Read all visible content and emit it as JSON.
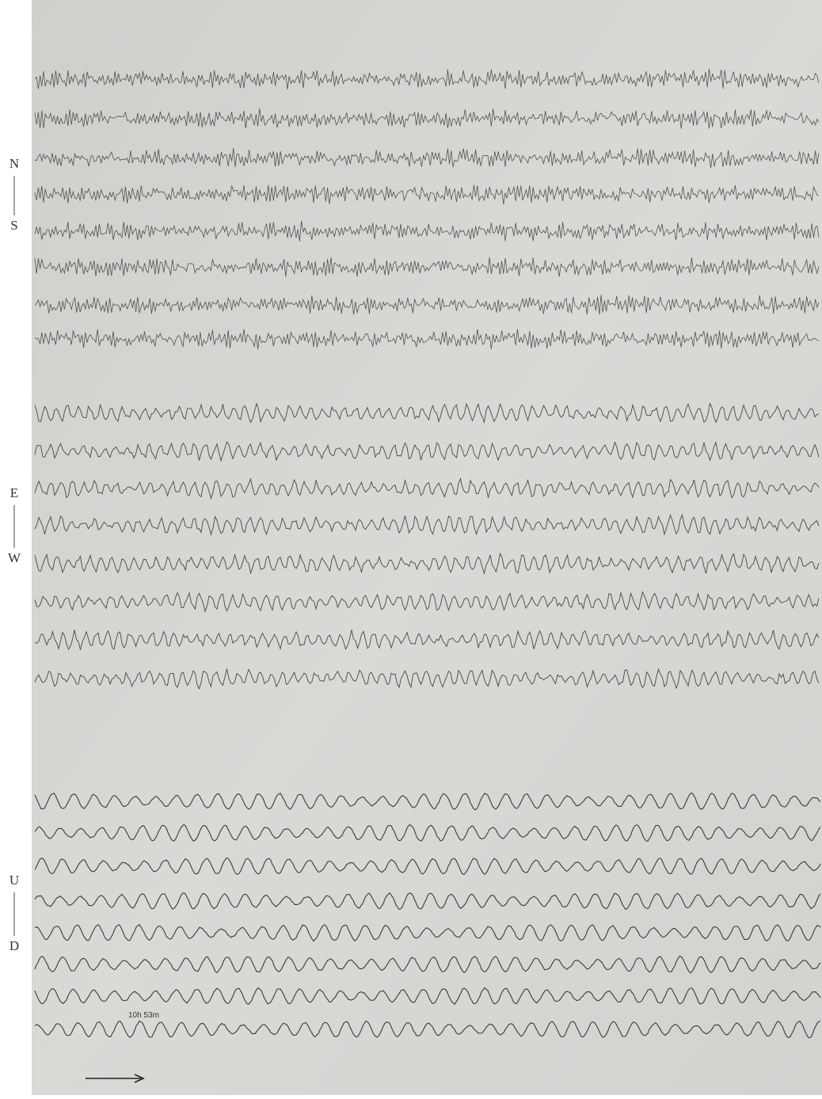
{
  "components": {
    "north_south": {
      "top": "N",
      "bottom": "S"
    },
    "east_west": {
      "top": "E",
      "bottom": "W"
    },
    "up_down": {
      "top": "U",
      "bottom": "D"
    }
  },
  "timestamp": "10h 53m"
}
